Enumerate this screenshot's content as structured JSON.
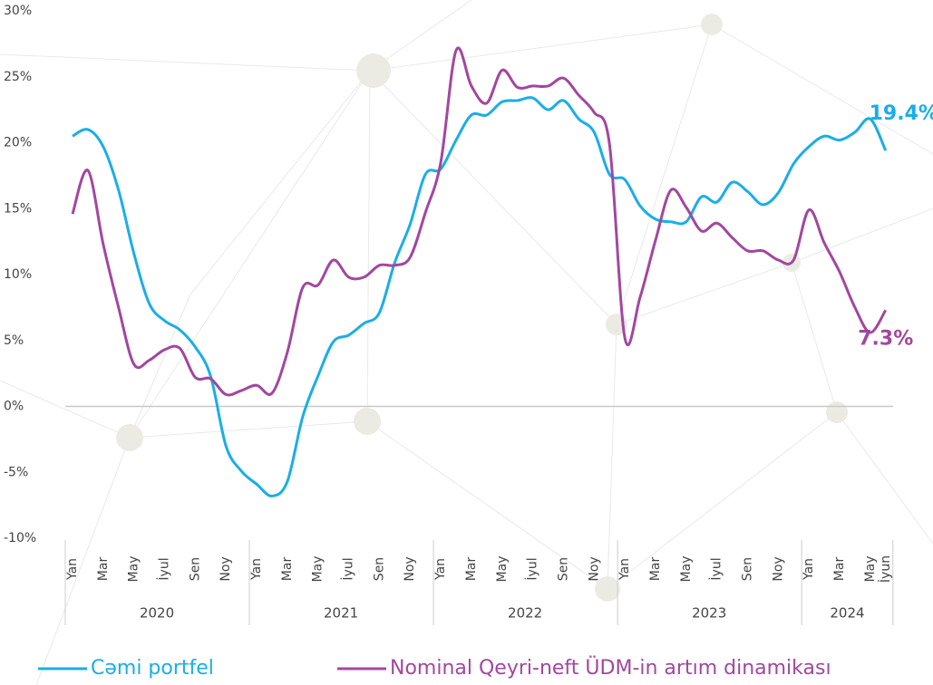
{
  "chart_data": {
    "type": "line",
    "categories": [
      "Yan",
      null,
      "Mar",
      null,
      "May",
      null,
      "İyul",
      null,
      "Sen",
      null,
      "Noy",
      null,
      "Yan",
      null,
      "Mar",
      null,
      "May",
      null,
      "İyul",
      null,
      "Sen",
      null,
      "Noy",
      null,
      "Yan",
      null,
      "Mar",
      null,
      "May",
      null,
      "İyul",
      null,
      "Sen",
      null,
      "Noy",
      null,
      "Yan",
      null,
      "Mar",
      null,
      "May",
      null,
      "İyul",
      null,
      "Sen",
      null,
      "Noy",
      null,
      "Yan",
      null,
      "Mar",
      null,
      "May",
      "İyun"
    ],
    "x_groups": [
      "2020",
      "2021",
      "2022",
      "2023",
      "2024"
    ],
    "ylim": [
      -10,
      30
    ],
    "yticks": [
      {
        "value": -10,
        "label": "-10%"
      },
      {
        "value": -5,
        "label": "-5%"
      },
      {
        "value": 0,
        "label": "0%"
      },
      {
        "value": 5,
        "label": "5%"
      },
      {
        "value": 10,
        "label": "10%"
      },
      {
        "value": 15,
        "label": "15%"
      },
      {
        "value": 20,
        "label": "20%"
      },
      {
        "value": 25,
        "label": "25%"
      },
      {
        "value": 30,
        "label": "30%"
      }
    ],
    "zero_line": true,
    "series": [
      {
        "name": "Cəmi portfel",
        "color": "#1aaee6",
        "values": [
          20.5,
          21.0,
          19.7,
          16.4,
          11.6,
          7.8,
          6.5,
          5.8,
          4.5,
          2.3,
          -3.0,
          -4.9,
          -5.9,
          -6.8,
          -5.7,
          -0.8,
          2.3,
          4.9,
          5.4,
          6.3,
          7.1,
          10.9,
          13.8,
          17.6,
          18.0,
          20.2,
          22.1,
          22.1,
          23.1,
          23.2,
          23.4,
          22.5,
          23.2,
          21.8,
          20.8,
          17.6,
          17.2,
          15.2,
          14.2,
          14.0,
          14.0,
          15.9,
          15.5,
          17.0,
          16.3,
          15.3,
          16.2,
          18.4,
          19.7,
          20.5,
          20.2,
          20.8,
          21.8,
          19.4
        ],
        "value_labels": [
          null,
          null,
          null,
          null,
          null,
          null,
          null,
          null,
          null,
          null,
          null,
          null,
          null,
          null,
          null,
          null,
          null,
          null,
          null,
          null,
          null,
          null,
          null,
          null,
          null,
          null,
          null,
          null,
          null,
          null,
          null,
          null,
          null,
          null,
          null,
          null,
          null,
          null,
          null,
          null,
          null,
          null,
          null,
          null,
          null,
          null,
          null,
          null,
          null,
          null,
          null,
          null,
          null,
          "19.4%"
        ]
      },
      {
        "name": "Nominal Qeyri-neft ÜDM-in artım dinamikası",
        "color": "#a2479f",
        "values": [
          14.6,
          17.9,
          12.3,
          7.5,
          3.2,
          3.5,
          4.3,
          4.4,
          2.2,
          2.1,
          0.9,
          1.2,
          1.6,
          1.0,
          4.1,
          9.0,
          9.2,
          11.1,
          9.8,
          9.8,
          10.7,
          10.7,
          11.3,
          14.7,
          18.5,
          27.0,
          24.3,
          23.0,
          25.5,
          24.2,
          24.3,
          24.3,
          24.9,
          23.6,
          22.3,
          19.9,
          5.2,
          8.3,
          12.6,
          16.4,
          15.1,
          13.3,
          13.9,
          12.8,
          11.8,
          11.8,
          11.1,
          11.1,
          14.9,
          12.4,
          10.2,
          7.5,
          5.6,
          7.3
        ],
        "value_labels": [
          null,
          null,
          null,
          null,
          null,
          null,
          null,
          null,
          null,
          null,
          null,
          null,
          null,
          null,
          null,
          null,
          null,
          null,
          null,
          null,
          null,
          null,
          null,
          null,
          null,
          null,
          null,
          null,
          null,
          null,
          null,
          null,
          null,
          null,
          null,
          null,
          null,
          null,
          null,
          null,
          null,
          null,
          null,
          null,
          null,
          null,
          null,
          null,
          null,
          null,
          null,
          null,
          null,
          "7.3%"
        ]
      }
    ]
  }
}
